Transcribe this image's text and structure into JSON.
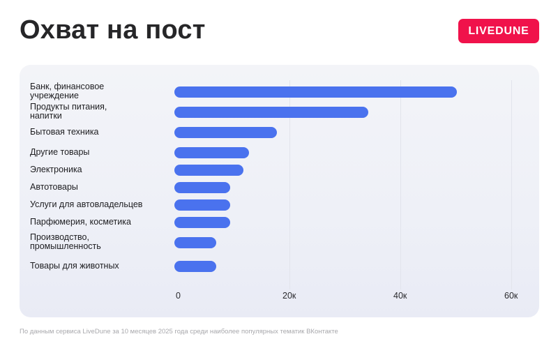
{
  "header": {
    "title": "Охват на пост",
    "logo_text": "LIVEDUNE",
    "logo_color": "#f0124b"
  },
  "chart_data": {
    "type": "bar",
    "orientation": "horizontal",
    "title": "Охват на пост",
    "xlabel": "",
    "ylabel": "",
    "categories": [
      "Банк, финансовое учреждение",
      "Продукты питания, напитки",
      "Бытовая техника",
      "Другие товары",
      "Электроника",
      "Автотовары",
      "Услуги для автовладельцев",
      "Парфюмерия, косметика",
      "Производство, промышленность",
      "Товары для животных"
    ],
    "category_lines": [
      [
        "Банк, финансовое",
        "учреждение"
      ],
      [
        "Продукты питания,",
        "напитки"
      ],
      [
        "Бытовая техника"
      ],
      [
        "Другие товары"
      ],
      [
        "Электроника"
      ],
      [
        "Автотовары"
      ],
      [
        "Услуги для автовладельцев"
      ],
      [
        "Парфюмерия, косметика"
      ],
      [
        "Производство,",
        "промышленность"
      ],
      [
        "Товары для животных"
      ]
    ],
    "values": [
      51000,
      35000,
      18500,
      13500,
      12500,
      10000,
      10000,
      10000,
      7500,
      7500
    ],
    "xlim": [
      0,
      60000
    ],
    "x_ticks": [
      0,
      20000,
      40000,
      60000
    ],
    "x_tick_labels": [
      "0",
      "20к",
      "40к",
      "60к"
    ],
    "grid": true,
    "bar_color": "#4a72ee",
    "legend": null
  },
  "footer": {
    "note": "По данным сервиса LiveDune за 10 месяцев 2025 года среди наиболее популярных тематик ВКонтакте"
  }
}
